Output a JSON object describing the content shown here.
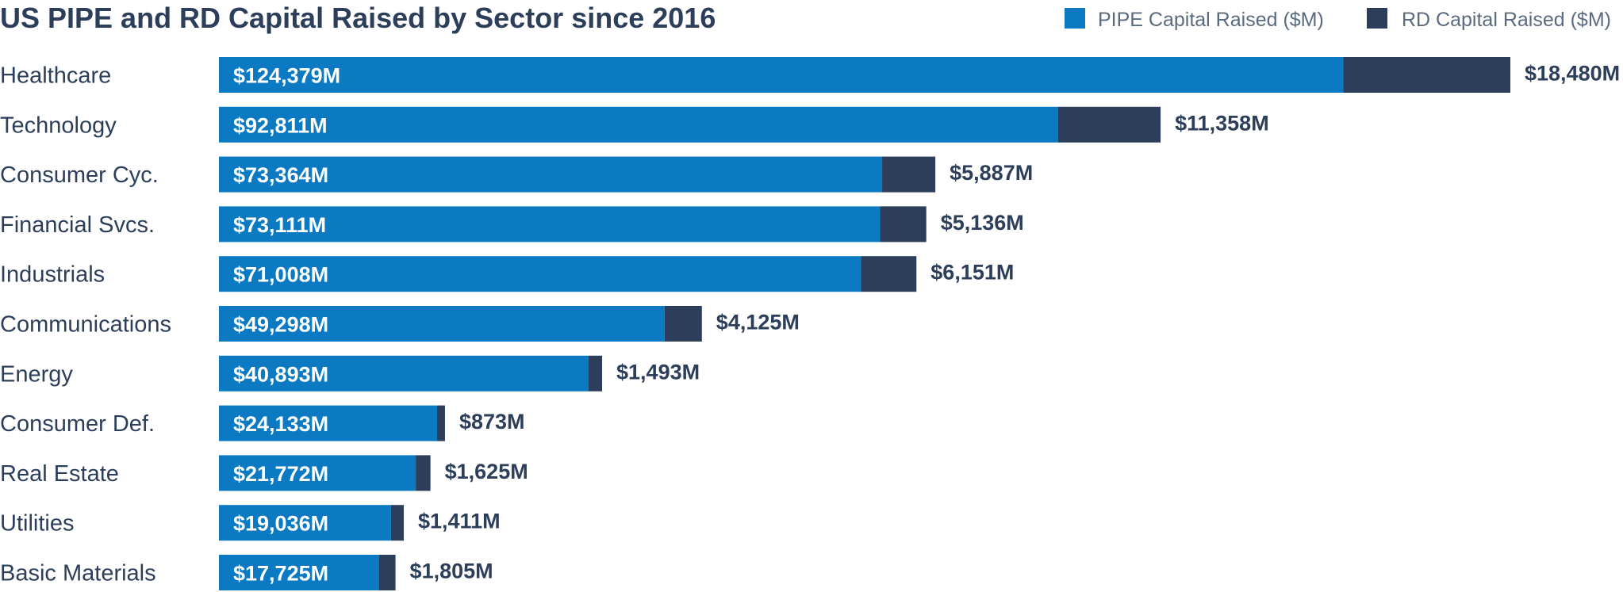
{
  "colors": {
    "pipe": "#0b7ac2",
    "rd": "#2c3e5a"
  },
  "chart_data": {
    "type": "bar",
    "orientation": "horizontal",
    "stacked": true,
    "title": "US PIPE and RD Capital Raised by Sector since 2016",
    "legend_position": "top-right",
    "grid": false,
    "xlim": [
      0,
      142859
    ],
    "categories": [
      "Healthcare",
      "Technology",
      "Consumer Cyc.",
      "Financial Svcs.",
      "Industrials",
      "Communications",
      "Energy",
      "Consumer Def.",
      "Real Estate",
      "Utilities",
      "Basic Materials"
    ],
    "series": [
      {
        "name": "PIPE Capital Raised ($M)",
        "values": [
          124379,
          92811,
          73364,
          73111,
          71008,
          49298,
          40893,
          24133,
          21772,
          19036,
          17725
        ],
        "labels": [
          "$124,379M",
          "$92,811M",
          "$73,364M",
          "$73,111M",
          "$71,008M",
          "$49,298M",
          "$40,893M",
          "$24,133M",
          "$21,772M",
          "$19,036M",
          "$17,725M"
        ]
      },
      {
        "name": "RD Capital Raised ($M)",
        "values": [
          18480,
          11358,
          5887,
          5136,
          6151,
          4125,
          1493,
          873,
          1625,
          1411,
          1805
        ],
        "labels": [
          "$18,480M",
          "$11,358M",
          "$5,887M",
          "$5,136M",
          "$6,151M",
          "$4,125M",
          "$1,493M",
          "$873M",
          "$1,625M",
          "$1,411M",
          "$1,805M"
        ]
      }
    ]
  }
}
